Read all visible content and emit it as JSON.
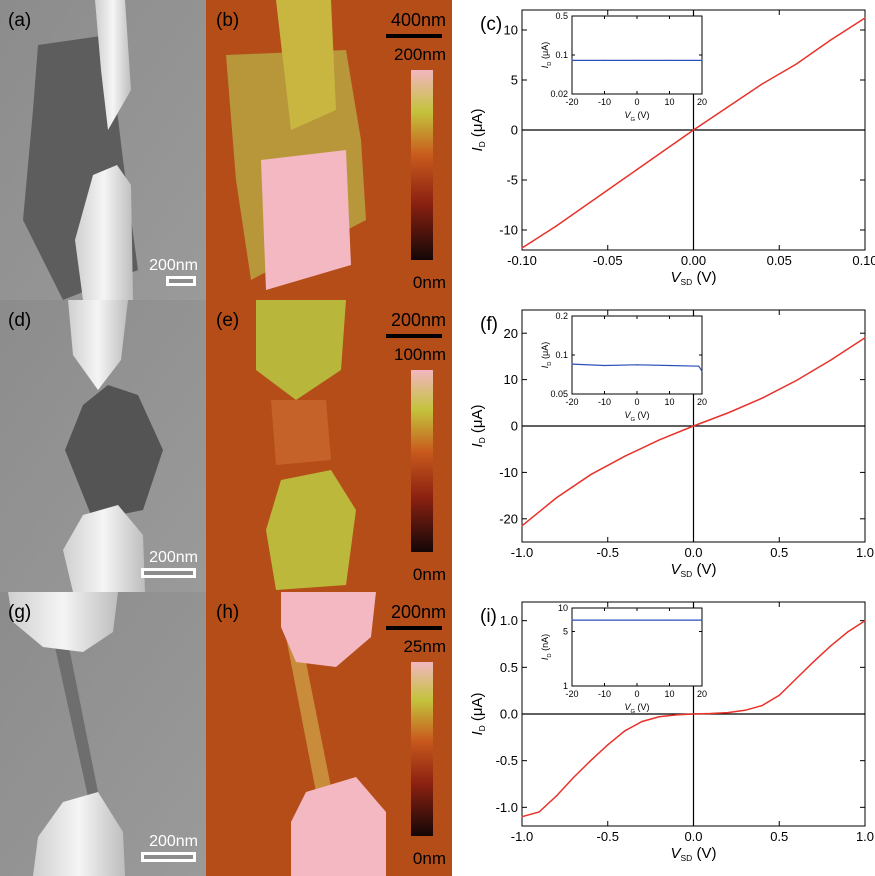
{
  "panels": [
    {
      "label": "(a)",
      "kind": "sem",
      "scalebar": "200nm",
      "flake": "pentagon"
    },
    {
      "label": "(b)",
      "kind": "afm",
      "scalebar": "400nm",
      "colorbar_max": "200nm",
      "colorbar_min": "0nm"
    },
    {
      "label": "(c)",
      "kind": "iv",
      "chart_data": {
        "type": "line",
        "xlabel_main": "V",
        "xlabel_sub": "SD",
        "xlabel_unit": "(V)",
        "ylabel_main": "I",
        "ylabel_sub": "D",
        "ylabel_unit": "(μA)",
        "xlim": [
          -0.1,
          0.1
        ],
        "ylim": [
          -12,
          12
        ],
        "xticks": [
          -0.1,
          -0.05,
          0,
          0.05,
          0.1
        ],
        "xtick_labels": [
          "-0.10",
          "-0.05",
          "0.00",
          "0.05",
          "0.10"
        ],
        "yticks": [
          -10,
          -5,
          0,
          5,
          10
        ],
        "ytick_labels": [
          "-10",
          "-5",
          "0",
          "5",
          "10"
        ],
        "color": "#e8322a",
        "x": [
          -0.1,
          -0.08,
          -0.06,
          -0.04,
          -0.02,
          0,
          0.02,
          0.04,
          0.06,
          0.08,
          0.1
        ],
        "y": [
          -11.8,
          -9.6,
          -7.2,
          -4.8,
          -2.4,
          0,
          2.3,
          4.6,
          6.6,
          9.0,
          11.2
        ],
        "inset": {
          "type": "line",
          "scale": "log",
          "xlabel_main": "V",
          "xlabel_sub": "G",
          "xlabel_unit": "(V)",
          "ylabel_main": "I",
          "ylabel_sub": "D",
          "ylabel_unit": "(μA)",
          "xlim": [
            -20,
            20
          ],
          "ylim": [
            0.02,
            0.5
          ],
          "xticks": [
            -20,
            -10,
            0,
            10,
            20
          ],
          "xtick_labels": [
            "-20",
            "-10",
            "0",
            "10",
            "20"
          ],
          "yticks": [
            0.02,
            0.1,
            0.5
          ],
          "ytick_labels": [
            "0.02",
            "0.1",
            "0.5"
          ],
          "color": "#2b4fb8",
          "x": [
            -20,
            -10,
            0,
            10,
            20
          ],
          "y": [
            0.08,
            0.08,
            0.08,
            0.08,
            0.08
          ]
        }
      }
    },
    {
      "label": "(d)",
      "kind": "sem",
      "scalebar": "200nm",
      "flake": "diamond"
    },
    {
      "label": "(e)",
      "kind": "afm",
      "scalebar": "200nm",
      "colorbar_max": "100nm",
      "colorbar_min": "0nm"
    },
    {
      "label": "(f)",
      "kind": "iv",
      "chart_data": {
        "type": "line",
        "xlabel_main": "V",
        "xlabel_sub": "SD",
        "xlabel_unit": "(V)",
        "ylabel_main": "I",
        "ylabel_sub": "D",
        "ylabel_unit": "(μA)",
        "xlim": [
          -1,
          1
        ],
        "ylim": [
          -25,
          25
        ],
        "xticks": [
          -1,
          -0.5,
          0,
          0.5,
          1
        ],
        "xtick_labels": [
          "-1.0",
          "-0.5",
          "0.0",
          "0.5",
          "1.0"
        ],
        "yticks": [
          -20,
          -10,
          0,
          10,
          20
        ],
        "ytick_labels": [
          "-20",
          "-10",
          "0",
          "10",
          "20"
        ],
        "color": "#e8322a",
        "x": [
          -1,
          -0.8,
          -0.6,
          -0.4,
          -0.2,
          0,
          0.2,
          0.4,
          0.6,
          0.8,
          1
        ],
        "y": [
          -21.5,
          -15.5,
          -10.5,
          -6.5,
          -3.0,
          0,
          2.8,
          6.0,
          9.8,
          14.2,
          19.0
        ],
        "inset": {
          "type": "line",
          "scale": "log",
          "xlabel_main": "V",
          "xlabel_sub": "G",
          "xlabel_unit": "(V)",
          "ylabel_main": "I",
          "ylabel_sub": "D",
          "ylabel_unit": "(μA)",
          "xlim": [
            -20,
            20
          ],
          "ylim": [
            0.05,
            0.2
          ],
          "xticks": [
            -20,
            -10,
            0,
            10,
            20
          ],
          "xtick_labels": [
            "-20",
            "-10",
            "0",
            "10",
            "20"
          ],
          "yticks": [
            0.05,
            0.1,
            0.2
          ],
          "ytick_labels": [
            "0.05",
            "0.1",
            "0.2"
          ],
          "color": "#2b4fb8",
          "x": [
            -20,
            -10,
            0,
            10,
            19,
            20
          ],
          "y": [
            0.085,
            0.083,
            0.084,
            0.083,
            0.082,
            0.075
          ]
        }
      }
    },
    {
      "label": "(g)",
      "kind": "sem",
      "scalebar": "200nm",
      "flake": "ribbon"
    },
    {
      "label": "(h)",
      "kind": "afm",
      "scalebar": "200nm",
      "colorbar_max": "25nm",
      "colorbar_min": "0nm"
    },
    {
      "label": "(i)",
      "kind": "iv",
      "chart_data": {
        "type": "line",
        "xlabel_main": "V",
        "xlabel_sub": "SD",
        "xlabel_unit": "(V)",
        "ylabel_main": "I",
        "ylabel_sub": "D",
        "ylabel_unit": "(μA)",
        "xlim": [
          -1,
          1
        ],
        "ylim": [
          -1.2,
          1.2
        ],
        "xticks": [
          -1,
          -0.5,
          0,
          0.5,
          1
        ],
        "xtick_labels": [
          "-1.0",
          "-0.5",
          "0.0",
          "0.5",
          "1.0"
        ],
        "yticks": [
          -1,
          -0.5,
          0,
          0.5,
          1
        ],
        "ytick_labels": [
          "-1.0",
          "-0.5",
          "0.0",
          "0.5",
          "1.0"
        ],
        "color": "#e8322a",
        "x": [
          -1,
          -0.9,
          -0.8,
          -0.7,
          -0.6,
          -0.5,
          -0.4,
          -0.3,
          -0.2,
          -0.1,
          0,
          0.1,
          0.2,
          0.3,
          0.4,
          0.5,
          0.6,
          0.7,
          0.8,
          0.9,
          1
        ],
        "y": [
          -1.1,
          -1.05,
          -0.88,
          -0.68,
          -0.5,
          -0.33,
          -0.18,
          -0.08,
          -0.03,
          -0.01,
          0,
          0.005,
          0.015,
          0.04,
          0.09,
          0.2,
          0.38,
          0.56,
          0.73,
          0.88,
          1.0
        ],
        "inset": {
          "type": "line",
          "scale": "log",
          "xlabel_main": "V",
          "xlabel_sub": "G",
          "xlabel_unit": "(V)",
          "ylabel_main": "I",
          "ylabel_sub": "D",
          "ylabel_unit": "(nA)",
          "xlim": [
            -20,
            20
          ],
          "ylim": [
            1,
            10
          ],
          "xticks": [
            -20,
            -10,
            0,
            10,
            20
          ],
          "xtick_labels": [
            "-20",
            "-10",
            "0",
            "10",
            "20"
          ],
          "yticks": [
            1,
            5,
            10
          ],
          "ytick_labels": [
            "1",
            "5",
            "10"
          ],
          "color": "#2b4fb8",
          "x": [
            -20,
            -10,
            0,
            10,
            20
          ],
          "y": [
            7,
            7,
            7,
            7,
            7
          ]
        }
      }
    }
  ]
}
